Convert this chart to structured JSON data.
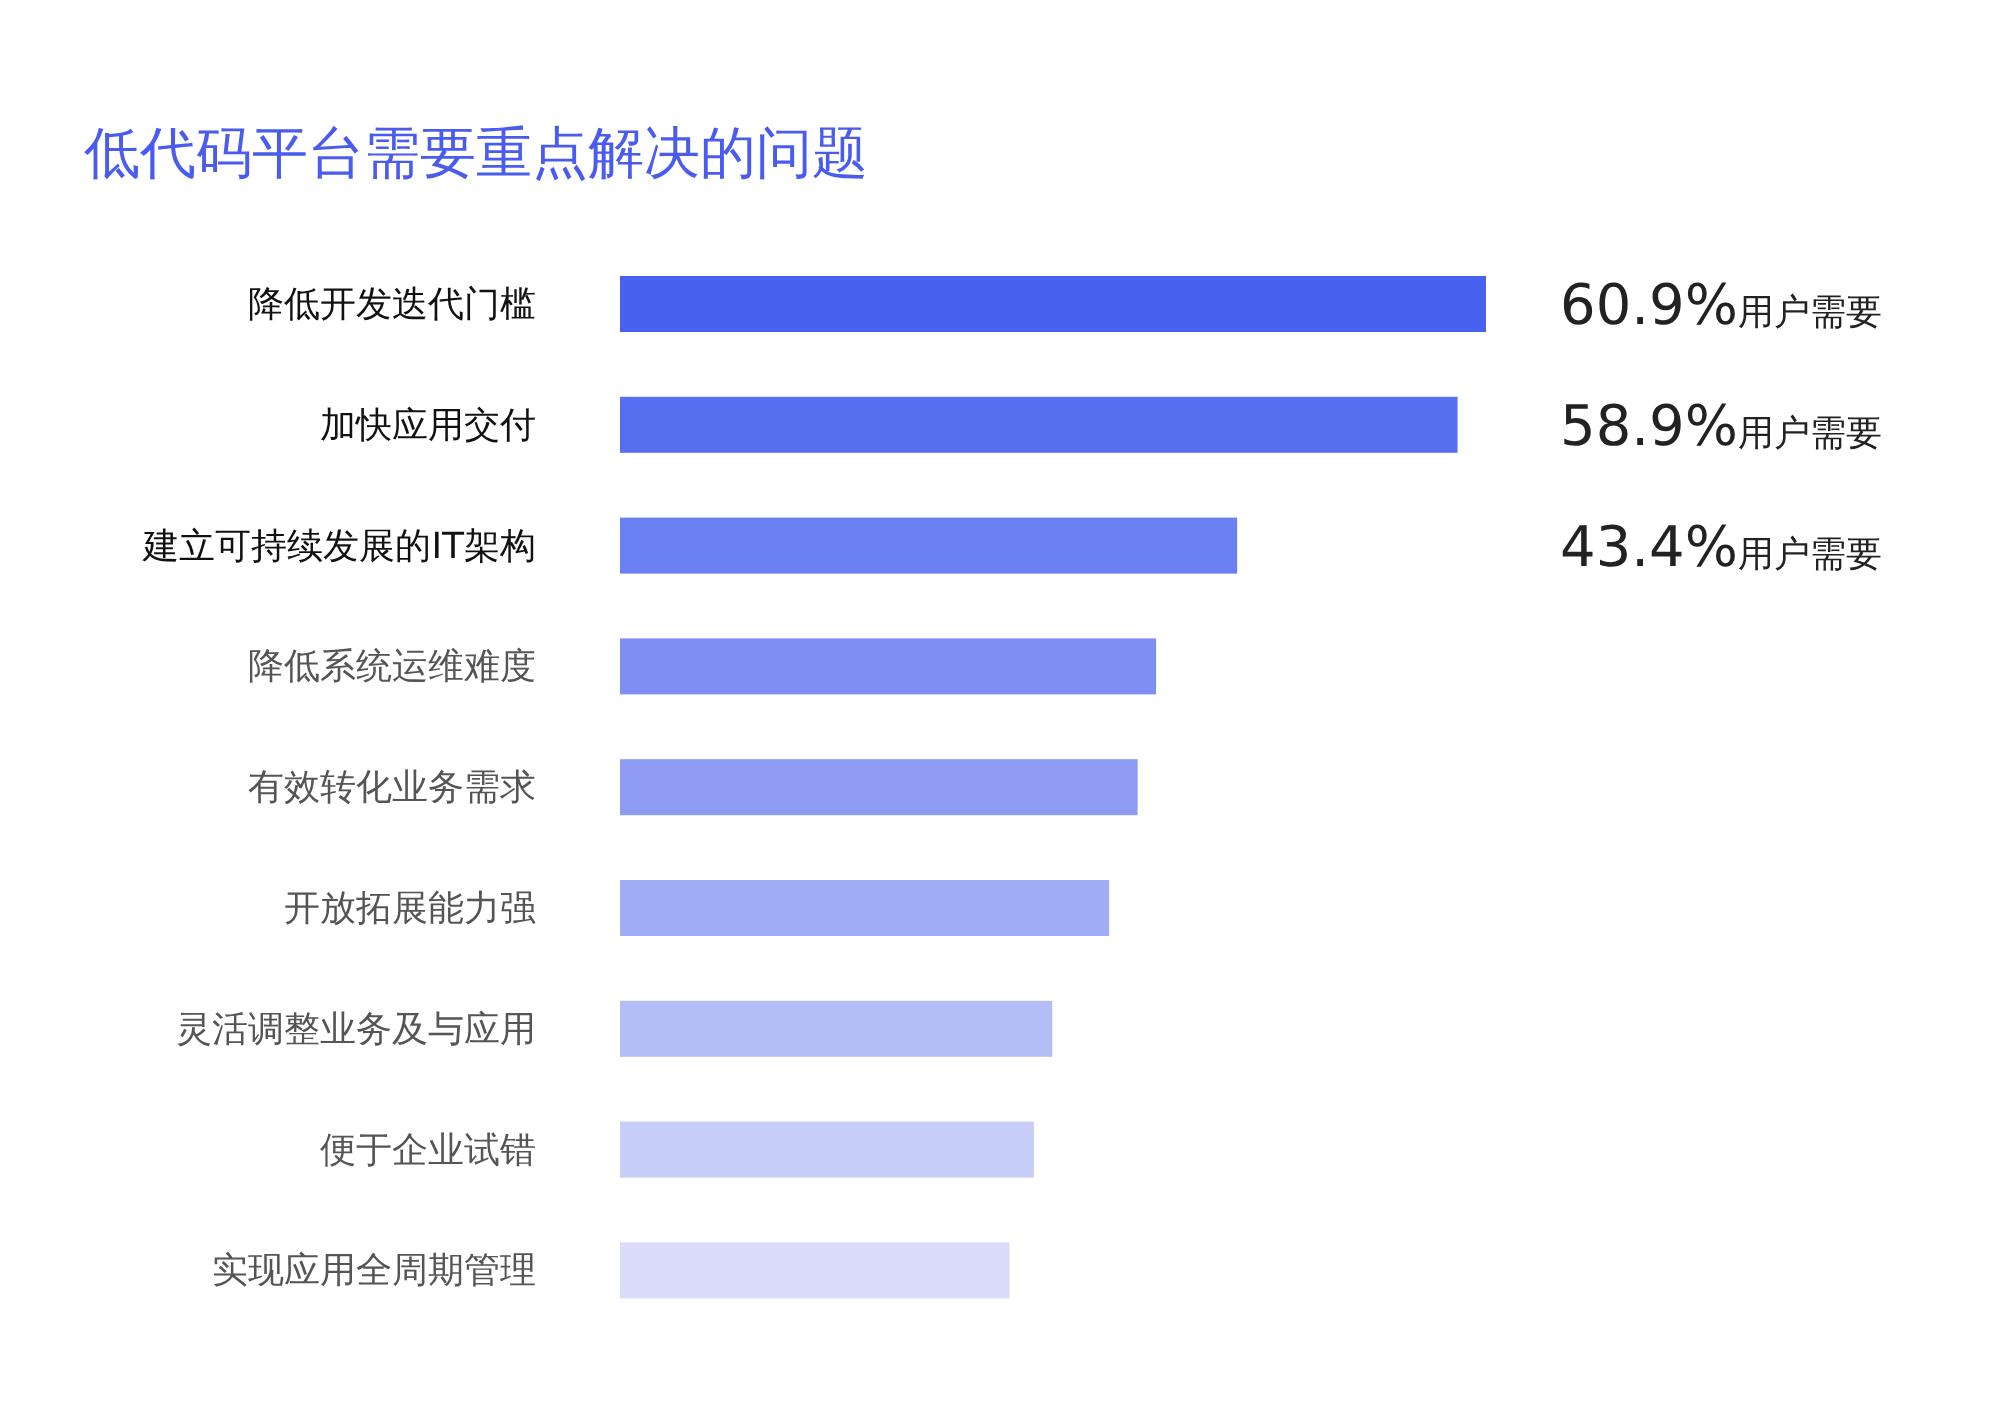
{
  "chart_data": {
    "type": "bar",
    "orientation": "horizontal",
    "title": "低代码平台需要重点解决的问题",
    "categories": [
      "降低开发迭代门槛",
      "加快应用交付",
      "建立可持续发展的IT架构",
      "降低系统运维难度",
      "有效转化业务需求",
      "开放拓展能力强",
      "灵活调整业务及与应用",
      "便于企业试错",
      "实现应用全周期管理"
    ],
    "values": [
      60.9,
      58.9,
      43.4,
      37.7,
      36.4,
      34.4,
      30.4,
      29.1,
      27.4
    ],
    "value_labels": [
      "60.9%用户需要",
      "58.9%用户需要",
      "43.4%用户需要",
      null,
      null,
      null,
      null,
      null,
      null
    ],
    "colors": [
      "#4862f0",
      "#576ef1",
      "#6a7ff1",
      "#7e8ef2",
      "#8e9cf3",
      "#a0acf4",
      "#b3bdf6",
      "#c6cdf7",
      "#d9ddf9"
    ]
  }
}
